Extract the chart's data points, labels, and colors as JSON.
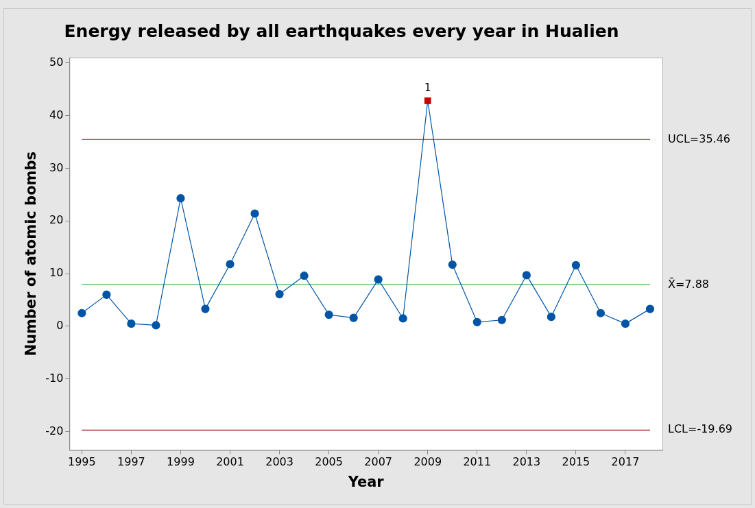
{
  "chart_data": {
    "type": "line",
    "title": "Energy released by all earthquakes every year in Hualien",
    "xlabel": "Year",
    "ylabel": "Number of atomic bombs",
    "x": [
      1995,
      1996,
      1997,
      1998,
      1999,
      2000,
      2001,
      2002,
      2003,
      2004,
      2005,
      2006,
      2007,
      2008,
      2009,
      2010,
      2011,
      2012,
      2013,
      2014,
      2015,
      2016,
      2017,
      2018
    ],
    "series": [
      {
        "color": "#0054a6",
        "colors": [
          "#0054a6",
          "#0054a6",
          "#0054a6",
          "#0054a6",
          "#0054a6",
          "#0054a6",
          "#0054a6",
          "#0054a6",
          "#0054a6",
          "#0054a6",
          "#0054a6",
          "#0054a6",
          "#0054a6",
          "#0054a6",
          "#cc0000",
          "#0054a6",
          "#0054a6",
          "#0054a6",
          "#0054a6",
          "#0054a6",
          "#0054a6",
          "#0054a6",
          "#0054a6",
          "#0054a6"
        ],
        "marker": [
          "circle",
          "circle",
          "circle",
          "circle",
          "circle",
          "circle",
          "circle",
          "circle",
          "circle",
          "circle",
          "circle",
          "circle",
          "circle",
          "circle",
          "square",
          "circle",
          "circle",
          "circle",
          "circle",
          "circle",
          "circle",
          "circle",
          "circle",
          "circle"
        ],
        "values": [
          2.5,
          6.0,
          0.5,
          0.2,
          24.3,
          3.3,
          11.8,
          21.4,
          6.1,
          9.6,
          2.2,
          1.6,
          8.9,
          1.5,
          42.8,
          11.7,
          0.8,
          1.2,
          9.7,
          1.8,
          11.6,
          2.5,
          0.5,
          3.3
        ]
      }
    ],
    "xlim": [
      1994.5,
      2018.5
    ],
    "xticks": [
      1995,
      1997,
      1999,
      2001,
      2003,
      2005,
      2007,
      2009,
      2011,
      2013,
      2015,
      2017
    ],
    "ylim": [
      -23.5,
      51
    ],
    "yticks": [
      -20,
      -10,
      0,
      10,
      20,
      30,
      40,
      50
    ],
    "line_style": "solid",
    "ref_lines": [
      {
        "axis": "y",
        "value": 35.46,
        "label": "UCL=35.46",
        "color": "#d9534f"
      },
      {
        "axis": "y",
        "value": 7.88,
        "label": "X̄=7.88",
        "color": "#4caf50"
      },
      {
        "axis": "y",
        "value": -19.69,
        "label": "LCL=-19.69",
        "color": "#a01010"
      }
    ],
    "annotations": [
      {
        "text": "1",
        "x": 2009,
        "y": 42.8
      }
    ]
  }
}
